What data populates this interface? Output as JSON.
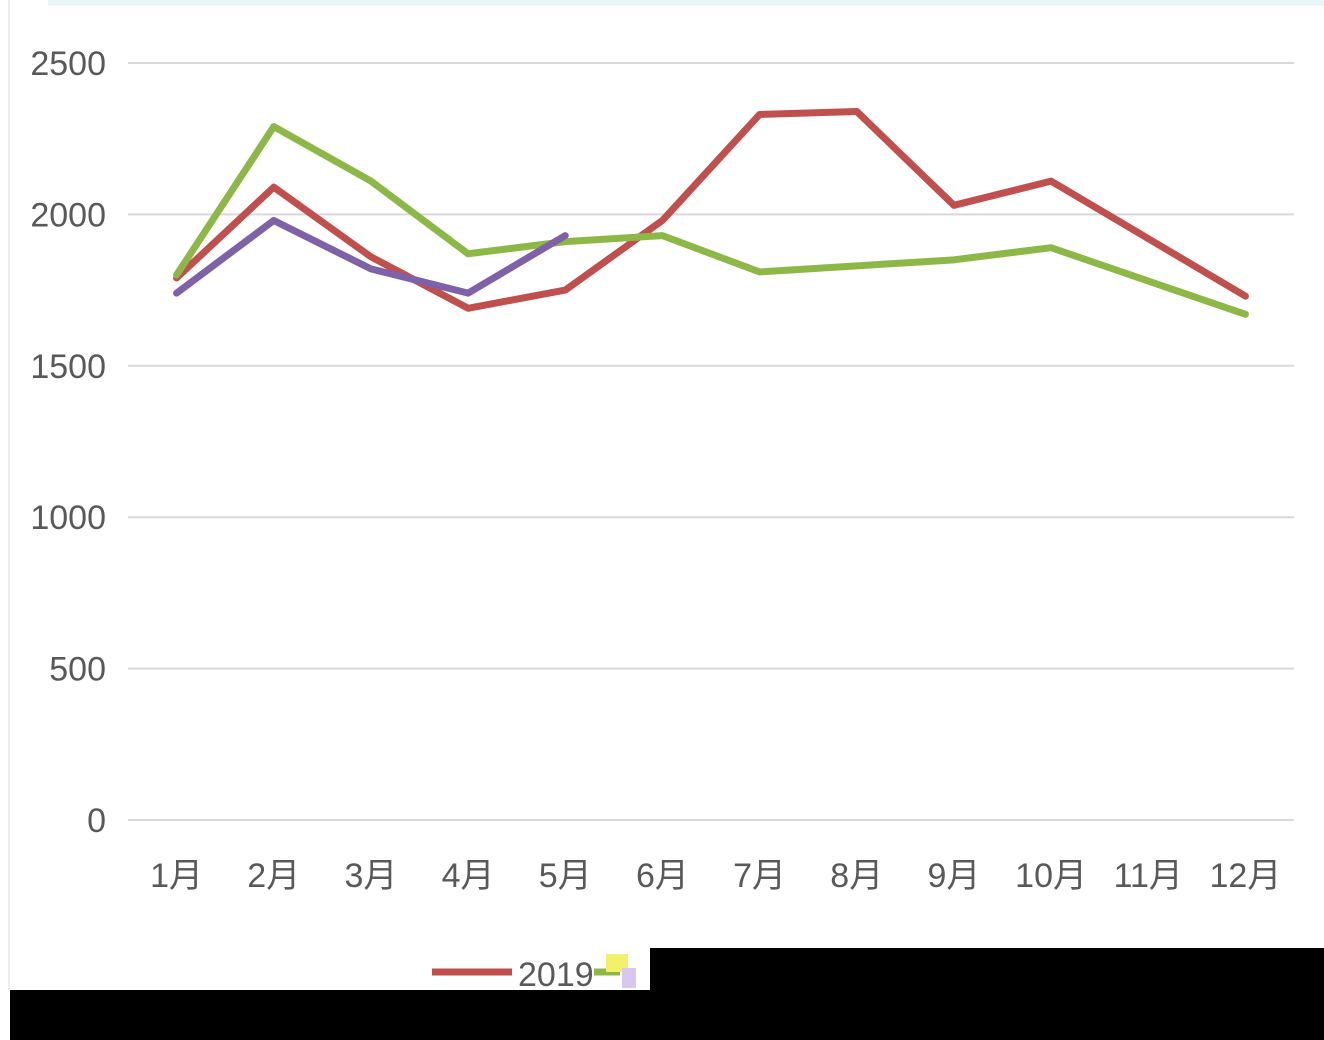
{
  "chart_data": {
    "type": "line",
    "title": "",
    "xlabel": "",
    "ylabel": "",
    "categories": [
      "1月",
      "2月",
      "3月",
      "4月",
      "5月",
      "6月",
      "7月",
      "8月",
      "9月",
      "10月",
      "11月",
      "12月"
    ],
    "ylim": [
      0,
      2500
    ],
    "yticks": [
      0,
      500,
      1000,
      1500,
      2000,
      2500
    ],
    "grid": true,
    "legend_position": "bottom",
    "series": [
      {
        "name": "2019",
        "color": "#c0504d",
        "values": [
          1790,
          2090,
          1860,
          1690,
          1750,
          1980,
          2330,
          2340,
          2030,
          2110,
          1920,
          1730
        ]
      },
      {
        "name": "",
        "color": "#8db848",
        "values": [
          1800,
          2290,
          2110,
          1870,
          1910,
          1930,
          1810,
          1830,
          1850,
          1890,
          1780,
          1670
        ]
      },
      {
        "name": "",
        "color": "#7f61a8",
        "values": [
          1740,
          1980,
          1820,
          1740,
          1930,
          null,
          null,
          null,
          null,
          null,
          null,
          null
        ]
      }
    ]
  }
}
